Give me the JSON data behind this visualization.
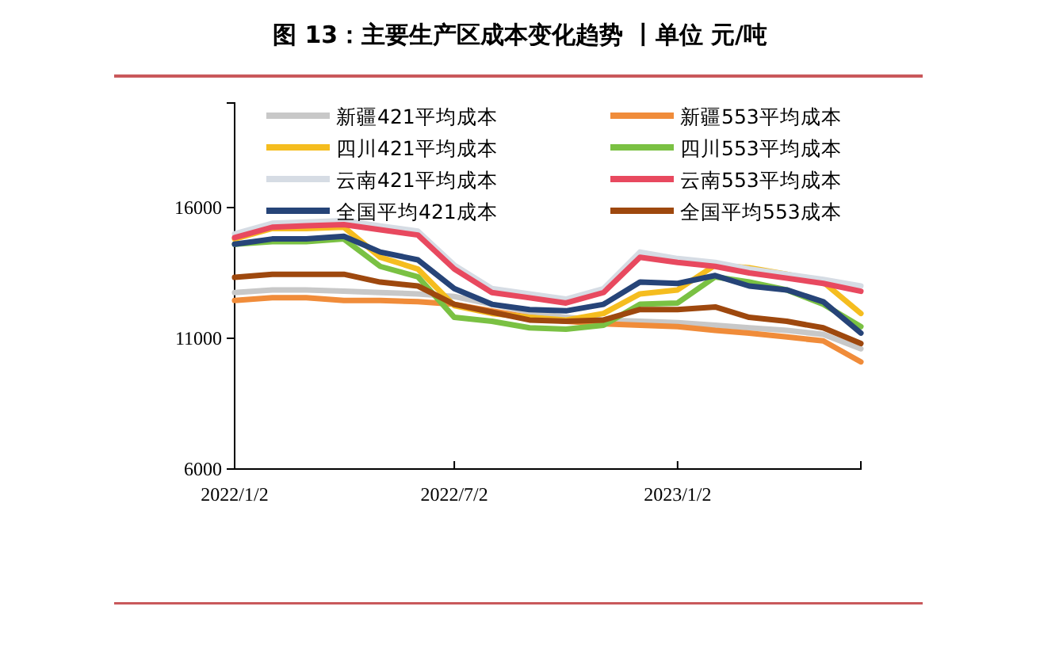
{
  "chart_data": {
    "type": "line",
    "title": "图 13：主要生产区成本变化趋势 丨单位 元/吨",
    "x": [
      "2022-01-02",
      "2022-02-02",
      "2022-03-02",
      "2022-04-02",
      "2022-05-02",
      "2022-06-02",
      "2022-07-02",
      "2022-08-02",
      "2022-09-02",
      "2022-10-02",
      "2022-11-02",
      "2022-12-02",
      "2023-01-02",
      "2023-02-02",
      "2023-03-02",
      "2023-04-02",
      "2023-05-02",
      "2023-06-02"
    ],
    "series": [
      {
        "name": "新疆421平均成本",
        "color": "#c8c8c8",
        "values": [
          12750,
          12850,
          12850,
          12800,
          12750,
          12700,
          12600,
          12300,
          12000,
          11800,
          11700,
          11650,
          11600,
          11500,
          11400,
          11300,
          11150,
          10600
        ]
      },
      {
        "name": "新疆553平均成本",
        "color": "#f08c3a",
        "values": [
          12450,
          12550,
          12550,
          12450,
          12450,
          12400,
          12300,
          12050,
          11800,
          11650,
          11550,
          11500,
          11450,
          11300,
          11200,
          11050,
          10900,
          10100
        ]
      },
      {
        "name": "四川421平均成本",
        "color": "#f5bd1f",
        "values": [
          14800,
          15200,
          15200,
          15250,
          14100,
          13650,
          12250,
          11950,
          11800,
          11700,
          11950,
          12700,
          12850,
          13800,
          13700,
          13450,
          13150,
          11950
        ]
      },
      {
        "name": "四川553平均成本",
        "color": "#7ac143",
        "values": [
          14600,
          14700,
          14700,
          14800,
          13750,
          13350,
          11800,
          11650,
          11400,
          11350,
          11500,
          12300,
          12350,
          13350,
          13150,
          12850,
          12300,
          11450
        ]
      },
      {
        "name": "云南421平均成本",
        "color": "#d6dce4",
        "values": [
          15000,
          15400,
          15450,
          15500,
          15300,
          15100,
          13800,
          12900,
          12700,
          12500,
          12900,
          14300,
          14050,
          13900,
          13650,
          13450,
          13250,
          13000
        ]
      },
      {
        "name": "云南553平均成本",
        "color": "#e8495f",
        "values": [
          14850,
          15250,
          15300,
          15350,
          15150,
          14950,
          13650,
          12750,
          12550,
          12350,
          12750,
          14100,
          13900,
          13750,
          13500,
          13300,
          13100,
          12800
        ]
      },
      {
        "name": "全国平均421成本",
        "color": "#264478",
        "values": [
          14600,
          14800,
          14800,
          14900,
          14300,
          14000,
          12900,
          12300,
          12100,
          12050,
          12300,
          13150,
          13100,
          13400,
          13000,
          12850,
          12400,
          11200
        ]
      },
      {
        "name": "全国平均553成本",
        "color": "#9e480e",
        "values": [
          13330,
          13450,
          13450,
          13450,
          13150,
          13000,
          12300,
          12000,
          11700,
          11650,
          11700,
          12100,
          12100,
          12200,
          11800,
          11650,
          11400,
          10800
        ]
      }
    ],
    "xlim": [
      "2022-01-02",
      "2023-06-02"
    ],
    "xticks": [
      {
        "value": "2022-01-02",
        "label": "2022/1/2"
      },
      {
        "value": "2022-07-02",
        "label": "2022/7/2"
      },
      {
        "value": "2023-01-02",
        "label": "2023/1/2"
      }
    ],
    "ylim": [
      6000,
      20000
    ],
    "yticks": [
      6000,
      11000,
      16000
    ],
    "grid": false,
    "legend": "top",
    "marker": "none",
    "line_style": "solid"
  }
}
